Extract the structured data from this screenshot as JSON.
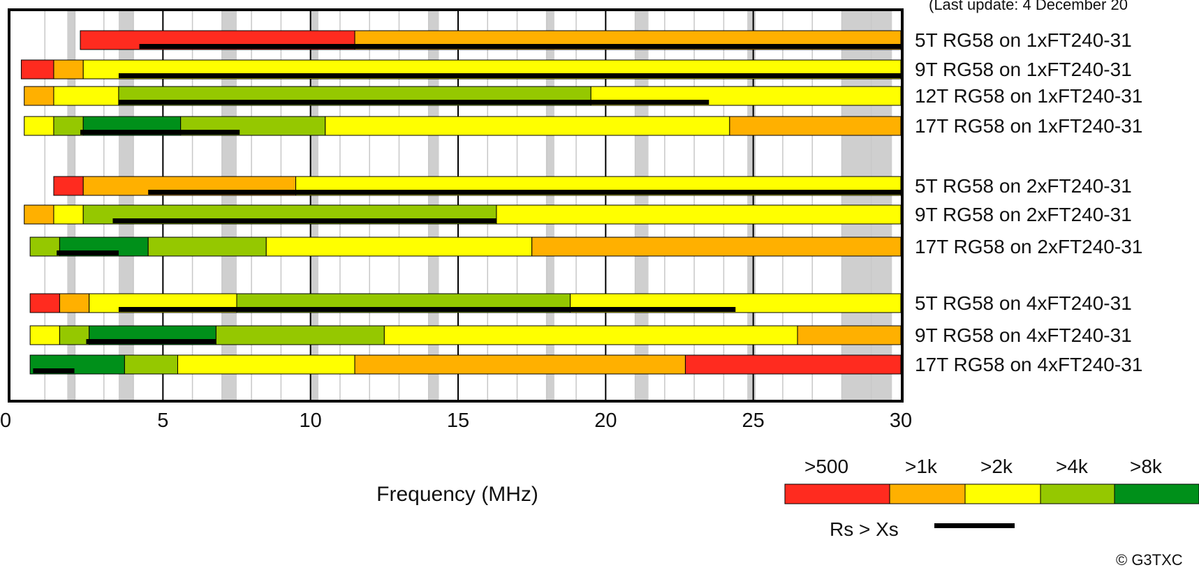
{
  "header": {
    "update_note": "(Last update: 4 December 20"
  },
  "copyright": "© G3TXC",
  "chart_data": {
    "type": "bar",
    "xlabel": "Frequency (MHz)",
    "xlim": [
      0,
      30
    ],
    "x_ticks": [
      "0",
      "5",
      "10",
      "15",
      "20",
      "25",
      "30"
    ],
    "grid": true,
    "legend": {
      "placement": "bottom-right",
      "title": "",
      "entries": [
        {
          "label": ">500",
          "color": "#ff2b1f"
        },
        {
          "label": ">1k",
          "color": "#ffb000"
        },
        {
          "label": ">2k",
          "color": "#ffff00"
        },
        {
          "label": ">4k",
          "color": "#95c800"
        },
        {
          "label": ">8k",
          "color": "#00901a"
        }
      ],
      "line_label": "Rs > Xs"
    },
    "colors": {
      ">500": "#ff2b1f",
      ">1k": "#ffb000",
      ">2k": "#ffff00",
      ">4k": "#95c800",
      ">8k": "#00901a"
    },
    "bands_shaded_mhz": [
      [
        1.8,
        2.0
      ],
      [
        3.5,
        4.0
      ],
      [
        7.0,
        7.5
      ],
      [
        10.1,
        10.15
      ],
      [
        14.0,
        14.35
      ],
      [
        18.07,
        18.17
      ],
      [
        21.0,
        21.45
      ],
      [
        24.89,
        24.99
      ],
      [
        28.0,
        29.7
      ]
    ],
    "series": [
      {
        "name": "5T RG58 on 1xFT240-31",
        "segments": [
          [
            2.2,
            11.5,
            ">500"
          ],
          [
            11.5,
            30.0,
            ">1k"
          ]
        ],
        "rs_gt_xs": [
          4.2,
          30.0
        ]
      },
      {
        "name": "9T RG58 on 1xFT240-31",
        "segments": [
          [
            0.2,
            1.3,
            ">500"
          ],
          [
            1.3,
            2.3,
            ">1k"
          ],
          [
            2.3,
            30.0,
            ">2k"
          ]
        ],
        "rs_gt_xs": [
          3.5,
          30.0
        ]
      },
      {
        "name": "12T RG58 on 1xFT240-31",
        "segments": [
          [
            0.3,
            1.3,
            ">1k"
          ],
          [
            1.3,
            3.5,
            ">2k"
          ],
          [
            3.5,
            19.5,
            ">4k"
          ],
          [
            19.5,
            30.0,
            ">2k"
          ]
        ],
        "rs_gt_xs": [
          3.5,
          23.5
        ]
      },
      {
        "name": "17T RG58 on 1xFT240-31",
        "segments": [
          [
            0.3,
            1.3,
            ">2k"
          ],
          [
            1.3,
            2.3,
            ">4k"
          ],
          [
            2.3,
            5.6,
            ">8k"
          ],
          [
            5.6,
            10.5,
            ">4k"
          ],
          [
            10.5,
            24.2,
            ">2k"
          ],
          [
            24.2,
            30.0,
            ">1k"
          ]
        ],
        "rs_gt_xs": [
          2.2,
          7.6
        ]
      },
      {
        "name": "5T RG58 on 2xFT240-31",
        "segments": [
          [
            1.3,
            2.3,
            ">500"
          ],
          [
            2.3,
            9.5,
            ">1k"
          ],
          [
            9.5,
            30.0,
            ">2k"
          ]
        ],
        "rs_gt_xs": [
          4.5,
          30.0
        ]
      },
      {
        "name": "9T RG58 on 2xFT240-31",
        "segments": [
          [
            0.3,
            1.3,
            ">1k"
          ],
          [
            1.3,
            2.3,
            ">2k"
          ],
          [
            2.3,
            16.3,
            ">4k"
          ],
          [
            16.3,
            30.0,
            ">2k"
          ]
        ],
        "rs_gt_xs": [
          3.3,
          16.3
        ]
      },
      {
        "name": "17T RG58 on 2xFT240-31",
        "segments": [
          [
            0.5,
            1.5,
            ">4k"
          ],
          [
            1.5,
            4.5,
            ">8k"
          ],
          [
            4.5,
            8.5,
            ">4k"
          ],
          [
            8.5,
            17.5,
            ">2k"
          ],
          [
            17.5,
            30.0,
            ">1k"
          ]
        ],
        "rs_gt_xs": [
          1.4,
          3.5
        ]
      },
      {
        "name": "5T RG58 on 4xFT240-31",
        "segments": [
          [
            0.5,
            1.5,
            ">500"
          ],
          [
            1.5,
            2.5,
            ">1k"
          ],
          [
            2.5,
            7.5,
            ">2k"
          ],
          [
            7.5,
            18.8,
            ">4k"
          ],
          [
            18.8,
            30.0,
            ">2k"
          ]
        ],
        "rs_gt_xs": [
          3.5,
          24.4
        ]
      },
      {
        "name": "9T RG58 on 4xFT240-31",
        "segments": [
          [
            0.5,
            1.5,
            ">2k"
          ],
          [
            1.5,
            2.5,
            ">4k"
          ],
          [
            2.5,
            6.8,
            ">8k"
          ],
          [
            6.8,
            12.5,
            ">4k"
          ],
          [
            12.5,
            26.5,
            ">2k"
          ],
          [
            26.5,
            30.0,
            ">1k"
          ]
        ],
        "rs_gt_xs": [
          2.4,
          6.8
        ]
      },
      {
        "name": "17T RG58 on 4xFT240-31",
        "segments": [
          [
            0.5,
            3.7,
            ">8k"
          ],
          [
            3.7,
            5.5,
            ">4k"
          ],
          [
            5.5,
            11.5,
            ">2k"
          ],
          [
            11.5,
            22.7,
            ">1k"
          ],
          [
            22.7,
            30.0,
            ">500"
          ]
        ],
        "rs_gt_xs": [
          0.6,
          2.0
        ]
      }
    ]
  }
}
